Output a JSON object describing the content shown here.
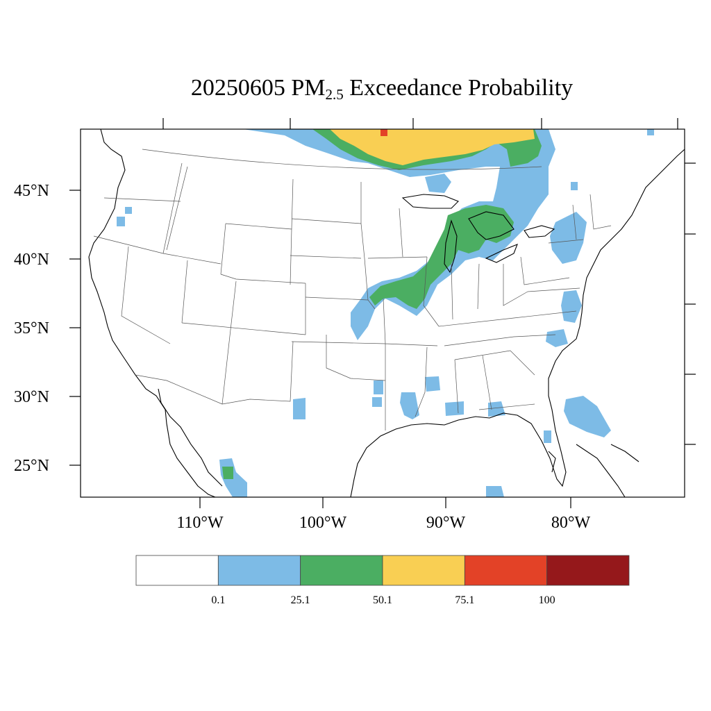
{
  "title": {
    "main": "20250605 PM",
    "subscript": "2.5",
    "rest": " Exceedance Probability"
  },
  "axes": {
    "lat_labels": [
      "45°N",
      "40°N",
      "35°N",
      "30°N",
      "25°N"
    ],
    "lon_labels": [
      "110°W",
      "100°W",
      "90°W",
      "80°W"
    ]
  },
  "colorbar": {
    "colors": [
      "#ffffff",
      "#7dbbe6",
      "#4bae62",
      "#f9cf53",
      "#e34227",
      "#95181b"
    ],
    "labels": [
      "0.1",
      "25.1",
      "50.1",
      "75.1",
      "100"
    ]
  },
  "map": {
    "projection": "lambert-conformal",
    "region": "CONUS"
  }
}
